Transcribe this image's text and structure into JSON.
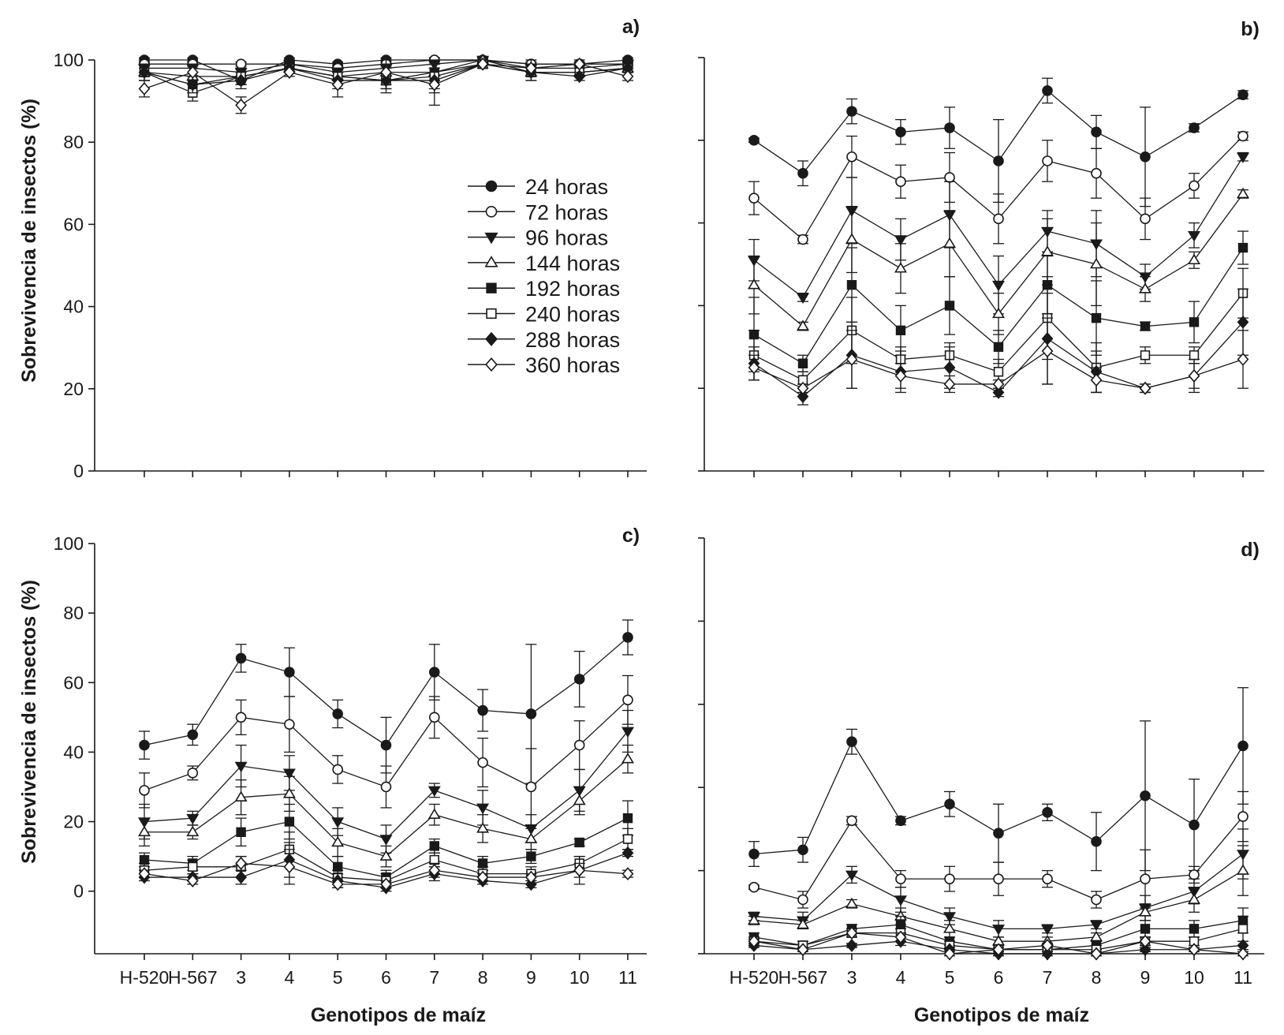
{
  "figure": {
    "ylabel": "Sobrevivencia de insectos (%)",
    "xlabel": "Genotipos de maíz",
    "legend": [
      "24 horas",
      "72 horas",
      "96 horas",
      "144 horas",
      "192 horas",
      "240 horas",
      "288 horas",
      "360 horas"
    ],
    "colors": {
      "ink": "#1a1a1a",
      "open_fill": "#ffffff"
    }
  },
  "chart_data": [
    {
      "type": "line",
      "title": "a)",
      "categories": [
        "H-520",
        "H-567",
        "3",
        "4",
        "5",
        "6",
        "7",
        "8",
        "9",
        "10",
        "11"
      ],
      "ylim": [
        0,
        100
      ],
      "yticks": [
        0,
        20,
        40,
        60,
        80,
        100
      ],
      "show_ytick_labels": true,
      "show_xtick_labels": false,
      "series": [
        {
          "name": "24 horas",
          "marker": "circle",
          "filled": true,
          "values": [
            100,
            100,
            95,
            100,
            99,
            100,
            100,
            100,
            99,
            99,
            100
          ],
          "err": [
            0.5,
            0.5,
            1,
            0.5,
            0.5,
            0.5,
            0.5,
            0.5,
            0.5,
            0.5,
            0.5
          ]
        },
        {
          "name": "72 horas",
          "marker": "circle",
          "filled": false,
          "values": [
            99,
            99,
            99,
            99,
            98,
            99,
            100,
            100,
            99,
            99,
            99
          ],
          "err": [
            0.5,
            0.5,
            0.5,
            0.5,
            0.5,
            0.5,
            0.5,
            0.5,
            0.5,
            0.5,
            0.5
          ]
        },
        {
          "name": "96 horas",
          "marker": "triangle-down",
          "filled": true,
          "values": [
            98,
            98,
            97,
            99,
            97,
            98,
            99,
            100,
            98,
            98,
            99
          ],
          "err": [
            1,
            1,
            1,
            0.5,
            1,
            1,
            1,
            0.5,
            1,
            1,
            0.5
          ]
        },
        {
          "name": "144 horas",
          "marker": "triangle-up",
          "filled": false,
          "values": [
            97,
            96,
            96,
            98,
            96,
            97,
            97,
            100,
            97,
            97,
            98
          ],
          "err": [
            1,
            2,
            1,
            1,
            1,
            2,
            2,
            0.5,
            1,
            1,
            1
          ]
        },
        {
          "name": "192 horas",
          "marker": "square",
          "filled": true,
          "values": [
            97,
            94,
            96,
            98,
            96,
            95,
            97,
            99,
            97,
            97,
            98
          ],
          "err": [
            1,
            2,
            2,
            1,
            2,
            2,
            2,
            1,
            1,
            1,
            1
          ]
        },
        {
          "name": "240 horas",
          "marker": "square",
          "filled": false,
          "values": [
            97,
            92,
            96,
            98,
            96,
            95,
            96,
            99,
            97,
            97,
            98
          ],
          "err": [
            2,
            2,
            2,
            1,
            2,
            2,
            3,
            1,
            2,
            1,
            1
          ]
        },
        {
          "name": "288 horas",
          "marker": "diamond",
          "filled": true,
          "values": [
            97,
            94,
            95,
            98,
            95,
            95,
            95,
            99,
            97,
            96,
            98
          ],
          "err": [
            2,
            2,
            2,
            1,
            2,
            3,
            3,
            1,
            2,
            1,
            1
          ]
        },
        {
          "name": "360 horas",
          "marker": "diamond",
          "filled": false,
          "values": [
            93,
            97,
            89,
            97,
            94,
            97,
            94,
            99,
            98,
            99,
            96
          ],
          "err": [
            2,
            2,
            2,
            1,
            3,
            3,
            5,
            1,
            2,
            1,
            1
          ]
        }
      ]
    },
    {
      "type": "line",
      "title": "b)",
      "categories": [
        "H-520",
        "H-567",
        "3",
        "4",
        "5",
        "6",
        "7",
        "8",
        "9",
        "10",
        "11"
      ],
      "ylim": [
        0,
        100
      ],
      "yticks": [
        0,
        20,
        40,
        60,
        80,
        100
      ],
      "show_ytick_labels": false,
      "show_xtick_labels": false,
      "series": [
        {
          "name": "24 horas",
          "marker": "circle",
          "filled": true,
          "values": [
            80,
            72,
            87,
            82,
            83,
            75,
            92,
            82,
            76,
            83,
            91
          ],
          "err": [
            0.5,
            3,
            3,
            3,
            5,
            10,
            3,
            4,
            12,
            1,
            1
          ]
        },
        {
          "name": "72 horas",
          "marker": "circle",
          "filled": false,
          "values": [
            66,
            56,
            76,
            70,
            71,
            61,
            75,
            72,
            61,
            69,
            81
          ],
          "err": [
            4,
            1,
            5,
            4,
            6,
            6,
            5,
            6,
            5,
            3,
            1
          ]
        },
        {
          "name": "96 horas",
          "marker": "triangle-down",
          "filled": true,
          "values": [
            51,
            42,
            63,
            56,
            62,
            45,
            58,
            55,
            47,
            57,
            76
          ],
          "err": [
            5,
            1,
            8,
            5,
            8,
            7,
            5,
            8,
            3,
            3,
            1
          ]
        },
        {
          "name": "144 horas",
          "marker": "triangle-up",
          "filled": false,
          "values": [
            45,
            35,
            56,
            49,
            55,
            38,
            53,
            50,
            44,
            51,
            67
          ],
          "err": [
            7,
            1,
            8,
            6,
            8,
            5,
            8,
            10,
            3,
            2,
            1
          ]
        },
        {
          "name": "192 horas",
          "marker": "square",
          "filled": true,
          "values": [
            33,
            26,
            45,
            34,
            40,
            30,
            45,
            37,
            35,
            36,
            54
          ],
          "err": [
            9,
            2,
            9,
            6,
            7,
            4,
            7,
            9,
            1,
            5,
            4
          ]
        },
        {
          "name": "240 horas",
          "marker": "square",
          "filled": false,
          "values": [
            28,
            22,
            34,
            27,
            28,
            24,
            37,
            25,
            28,
            28,
            43
          ],
          "err": [
            6,
            2,
            8,
            3,
            3,
            3,
            10,
            6,
            2,
            2,
            6
          ]
        },
        {
          "name": "288 horas",
          "marker": "diamond",
          "filled": true,
          "values": [
            26,
            18,
            28,
            24,
            25,
            19,
            32,
            24,
            20,
            23,
            36
          ],
          "err": [
            4,
            2,
            8,
            5,
            5,
            1,
            11,
            5,
            1,
            3,
            8
          ]
        },
        {
          "name": "360 horas",
          "marker": "diamond",
          "filled": false,
          "values": [
            25,
            20,
            27,
            23,
            21,
            21,
            29,
            22,
            20,
            23,
            27
          ],
          "err": [
            3,
            1,
            7,
            3,
            2,
            1,
            8,
            3,
            1,
            4,
            7
          ]
        }
      ]
    },
    {
      "type": "line",
      "title": "c)",
      "categories": [
        "H-520",
        "H-567",
        "3",
        "4",
        "5",
        "6",
        "7",
        "8",
        "9",
        "10",
        "11"
      ],
      "ylim": [
        -18,
        100
      ],
      "yticks": [
        0,
        20,
        40,
        60,
        80,
        100
      ],
      "show_ytick_labels": true,
      "show_xtick_labels": true,
      "series": [
        {
          "name": "24 horas",
          "marker": "circle",
          "filled": true,
          "values": [
            42,
            45,
            67,
            63,
            51,
            42,
            63,
            52,
            51,
            61,
            73
          ],
          "err": [
            4,
            3,
            4,
            7,
            4,
            8,
            8,
            6,
            20,
            8,
            5
          ]
        },
        {
          "name": "72 horas",
          "marker": "circle",
          "filled": false,
          "values": [
            29,
            34,
            50,
            48,
            35,
            30,
            50,
            37,
            30,
            42,
            55
          ],
          "err": [
            5,
            2,
            5,
            8,
            4,
            6,
            6,
            7,
            11,
            7,
            7
          ]
        },
        {
          "name": "96 horas",
          "marker": "triangle-down",
          "filled": true,
          "values": [
            20,
            21,
            36,
            34,
            20,
            15,
            29,
            24,
            18,
            29,
            46
          ],
          "err": [
            5,
            2,
            6,
            5,
            4,
            4,
            2,
            5,
            4,
            6,
            6
          ]
        },
        {
          "name": "144 horas",
          "marker": "triangle-up",
          "filled": false,
          "values": [
            17,
            17,
            27,
            28,
            14,
            10,
            22,
            18,
            15,
            26,
            38
          ],
          "err": [
            4,
            2,
            5,
            5,
            4,
            3,
            3,
            4,
            3,
            4,
            4
          ]
        },
        {
          "name": "192 horas",
          "marker": "square",
          "filled": true,
          "values": [
            9,
            8,
            17,
            20,
            7,
            4,
            13,
            8,
            10,
            14,
            21
          ],
          "err": [
            2,
            2,
            4,
            5,
            3,
            2,
            2,
            2,
            2,
            1,
            5
          ]
        },
        {
          "name": "240 horas",
          "marker": "square",
          "filled": false,
          "values": [
            6,
            7,
            7,
            12,
            4,
            3,
            9,
            5,
            5,
            8,
            15
          ],
          "err": [
            2,
            2,
            3,
            5,
            2,
            2,
            2,
            2,
            2,
            2,
            3
          ]
        },
        {
          "name": "288 horas",
          "marker": "diamond",
          "filled": true,
          "values": [
            4,
            4,
            4,
            9,
            3,
            1,
            5,
            3,
            2,
            6,
            11
          ],
          "err": [
            1,
            1,
            2,
            5,
            2,
            1,
            2,
            1,
            1,
            2,
            1
          ]
        },
        {
          "name": "360 horas",
          "marker": "diamond",
          "filled": false,
          "values": [
            5,
            3,
            8,
            7,
            2,
            2,
            6,
            4,
            4,
            6,
            5
          ],
          "err": [
            1,
            1,
            2,
            5,
            1,
            1,
            2,
            1,
            1,
            4,
            1
          ]
        }
      ]
    },
    {
      "type": "line",
      "title": "d)",
      "categories": [
        "H-520",
        "H-567",
        "3",
        "4",
        "5",
        "6",
        "7",
        "8",
        "9",
        "10",
        "11"
      ],
      "ylim": [
        0,
        100
      ],
      "yticks": [
        0,
        20,
        40,
        60,
        80,
        100
      ],
      "show_ytick_labels": false,
      "show_xtick_labels": true,
      "series": [
        {
          "name": "24 horas",
          "marker": "circle",
          "filled": true,
          "values": [
            24,
            25,
            51,
            32,
            36,
            29,
            34,
            27,
            38,
            31,
            50
          ],
          "err": [
            3,
            3,
            3,
            1,
            3,
            7,
            2,
            7,
            18,
            11,
            14
          ]
        },
        {
          "name": "72 horas",
          "marker": "circle",
          "filled": false,
          "values": [
            16,
            13,
            32,
            18,
            18,
            18,
            18,
            13,
            18,
            19,
            33
          ],
          "err": [
            0.5,
            2,
            1,
            2,
            3,
            4,
            2,
            2,
            7,
            2,
            6
          ]
        },
        {
          "name": "96 horas",
          "marker": "triangle-down",
          "filled": true,
          "values": [
            9,
            8,
            19,
            13,
            9,
            6,
            6,
            7,
            11,
            15,
            24
          ],
          "err": [
            1,
            2,
            2,
            3,
            2,
            2,
            1,
            1,
            3,
            3,
            6
          ]
        },
        {
          "name": "144 horas",
          "marker": "triangle-up",
          "filled": false,
          "values": [
            8,
            7,
            12,
            9,
            6,
            3,
            3,
            4,
            10,
            13,
            20
          ],
          "err": [
            1,
            1,
            1,
            2,
            2,
            1,
            1,
            1,
            2,
            3,
            6
          ]
        },
        {
          "name": "192 horas",
          "marker": "square",
          "filled": true,
          "values": [
            4,
            2,
            6,
            7,
            3,
            1,
            1,
            2,
            6,
            6,
            8
          ],
          "err": [
            1,
            1,
            1,
            2,
            1,
            1,
            0.5,
            1,
            2,
            2,
            3
          ]
        },
        {
          "name": "240 horas",
          "marker": "square",
          "filled": false,
          "values": [
            3,
            2,
            5,
            5,
            2,
            1,
            1,
            1,
            3,
            3,
            6
          ],
          "err": [
            1,
            1,
            1,
            1,
            1,
            1,
            0.5,
            1,
            1,
            1,
            3
          ]
        },
        {
          "name": "288 horas",
          "marker": "diamond",
          "filled": true,
          "values": [
            2,
            1,
            2,
            3,
            1,
            0,
            0,
            0,
            1,
            1,
            2
          ],
          "err": [
            0.5,
            0.5,
            0.5,
            1,
            0.5,
            0.5,
            0.5,
            0.5,
            0.5,
            0.5,
            1
          ]
        },
        {
          "name": "360 horas",
          "marker": "diamond",
          "filled": false,
          "values": [
            3,
            1,
            5,
            4,
            0,
            1,
            2,
            0,
            3,
            1,
            0
          ],
          "err": [
            0.5,
            0.5,
            1,
            1,
            0.5,
            0.5,
            0.5,
            0.5,
            1,
            0.5,
            0.5
          ]
        }
      ]
    }
  ]
}
